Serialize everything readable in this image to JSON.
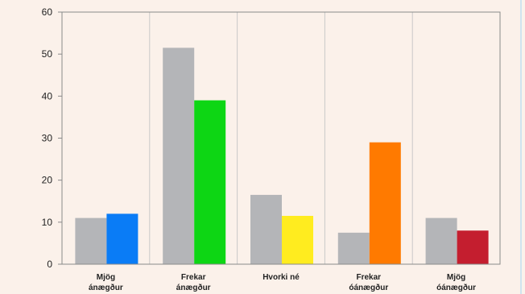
{
  "chart_data": {
    "type": "bar",
    "categories": [
      [
        "Mjög",
        "ánægður"
      ],
      [
        "Frekar",
        "ánægður"
      ],
      [
        "Hvorki né"
      ],
      [
        "Frekar",
        "óánægður"
      ],
      [
        "Mjög",
        "óánægður"
      ]
    ],
    "series": [
      {
        "values": [
          11,
          51.5,
          16.5,
          7.5,
          11
        ],
        "colors": [
          "#b4b5b8",
          "#b4b5b8",
          "#b4b5b8",
          "#b4b5b8",
          "#b4b5b8"
        ]
      },
      {
        "values": [
          12,
          39,
          11.5,
          29,
          8
        ],
        "colors": [
          "#0a7cf6",
          "#0dd614",
          "#ffec1f",
          "#ff7a00",
          "#c41e2f"
        ]
      }
    ],
    "yticks": [
      0,
      10,
      20,
      30,
      40,
      50,
      60
    ],
    "ylim": [
      0,
      60
    ],
    "grid": "vertical",
    "title": "",
    "xlabel": "",
    "ylabel": ""
  }
}
